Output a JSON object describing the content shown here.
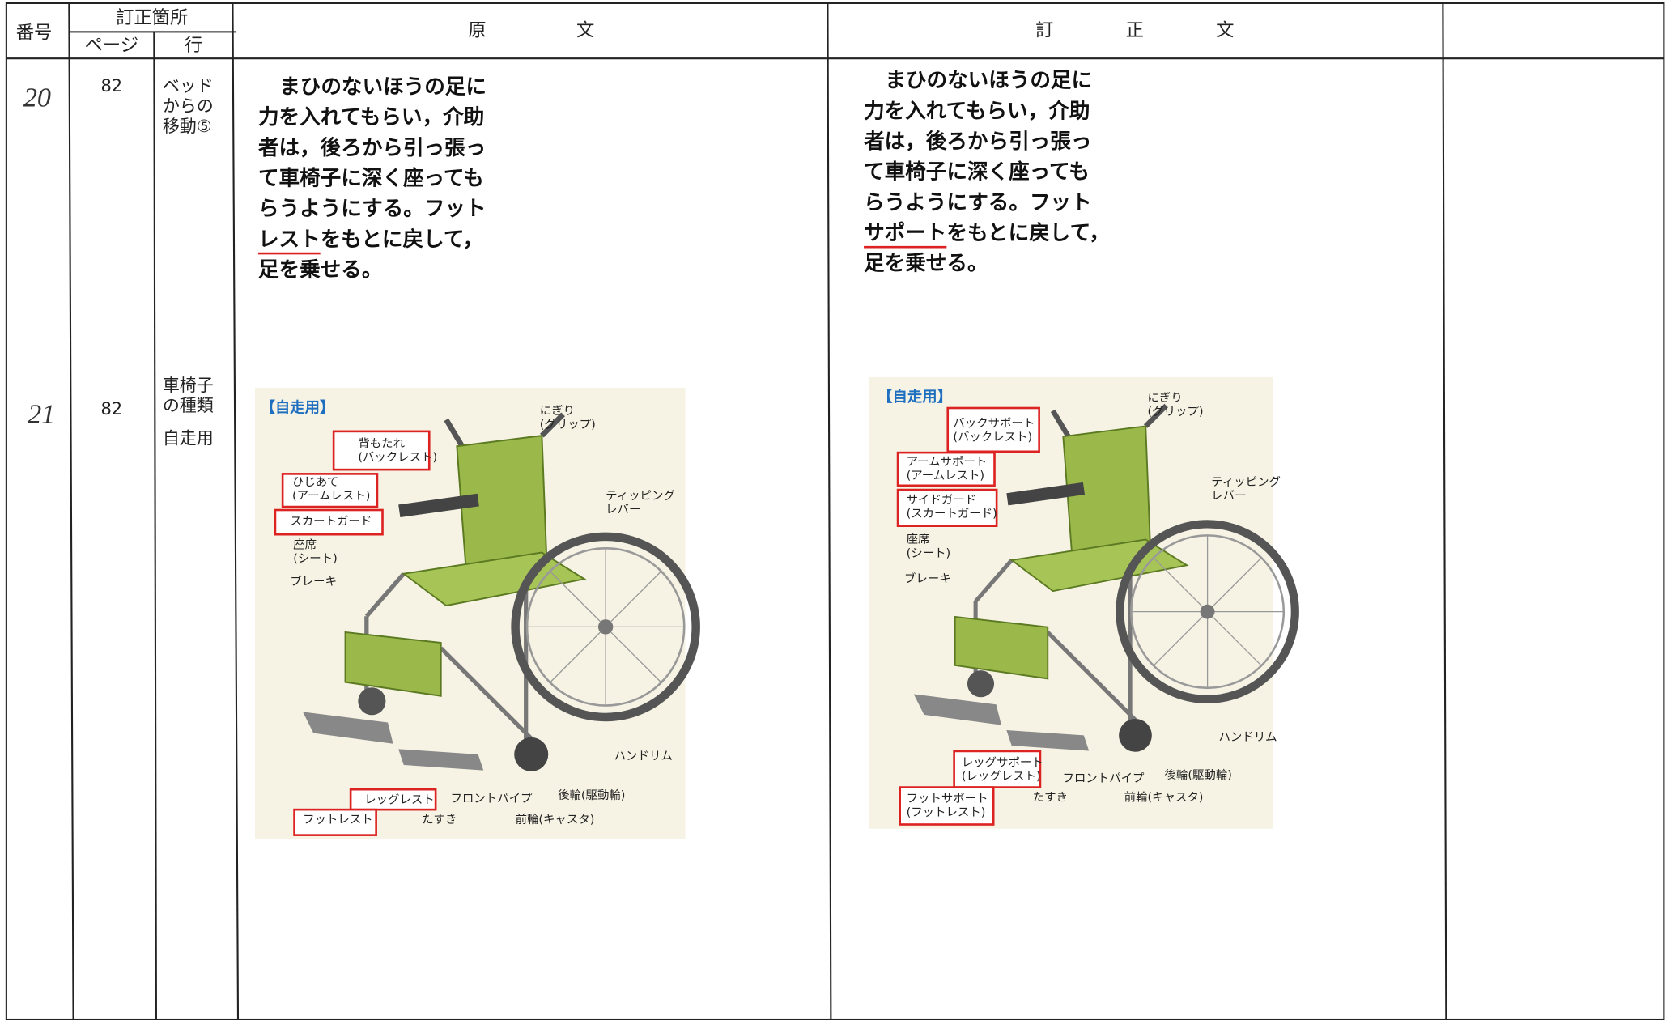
{
  "header": {
    "number": "番号",
    "location": "訂正箇所",
    "page": "ページ",
    "line": "行",
    "original": "原　　　　　文",
    "corrected": "訂　　　　正　　　　文"
  },
  "rows": [
    {
      "number": "20",
      "page": "82",
      "line": [
        "ベッド",
        "からの",
        "移動⑤"
      ],
      "original": [
        "まひのないほうの足に",
        "力を入れてもらい，介助",
        "者は，後ろから引っ張っ",
        "て車椅子に深く座っても",
        "らうようにする。フット",
        {
          "underlined": "レスト",
          "rest": "をもとに戻して，"
        },
        "足を乗せる。"
      ],
      "corrected": [
        "まひのないほうの足に",
        "力を入れてもらい，介助",
        "者は，後ろから引っ張っ",
        "て車椅子に深く座っても",
        "らうようにする。フット",
        {
          "underlined": "サポート",
          "rest": "をもとに戻して，"
        },
        "足を乗せる。"
      ]
    },
    {
      "number": "21",
      "page": "82",
      "line": [
        "車椅子",
        "の種類",
        "自走用"
      ],
      "original": {
        "title": "【自走用】",
        "labels": [
          [
            "にぎり",
            "(グリップ)"
          ],
          [
            "背もたれ",
            "(バックレスト)"
          ],
          [
            "ひじあて",
            "(アームレスト)"
          ],
          [
            "スカートガード"
          ],
          [
            "座席",
            "(シート)"
          ],
          [
            "ブレーキ"
          ],
          [
            "ティッピング",
            "レバー"
          ],
          [
            "ハンドリム"
          ],
          [
            "レッグレスト"
          ],
          [
            "フロントパイプ"
          ],
          [
            "後輪(駆動輪)"
          ],
          [
            "フットレスト"
          ],
          [
            "たすき"
          ],
          [
            "前輪(キャスタ)"
          ]
        ]
      },
      "corrected": {
        "title": "【自走用】",
        "labels": [
          [
            "にぎり",
            "(グリップ)"
          ],
          [
            "バックサポート",
            "(バックレスト)"
          ],
          [
            "アームサポート",
            "(アームレスト)"
          ],
          [
            "サイドガード",
            "(スカートガード)"
          ],
          [
            "座席",
            "(シート)"
          ],
          [
            "ブレーキ"
          ],
          [
            "ティッピング",
            "レバー"
          ],
          [
            "ハンドリム"
          ],
          [
            "レッグサポート",
            "(レッグレスト)"
          ],
          [
            "フロントパイプ"
          ],
          [
            "後輪(駆動輪)"
          ],
          [
            "フットサポート",
            "(フットレスト)"
          ],
          [
            "たすき"
          ],
          [
            "前輪(キャスタ)"
          ]
        ]
      }
    }
  ]
}
